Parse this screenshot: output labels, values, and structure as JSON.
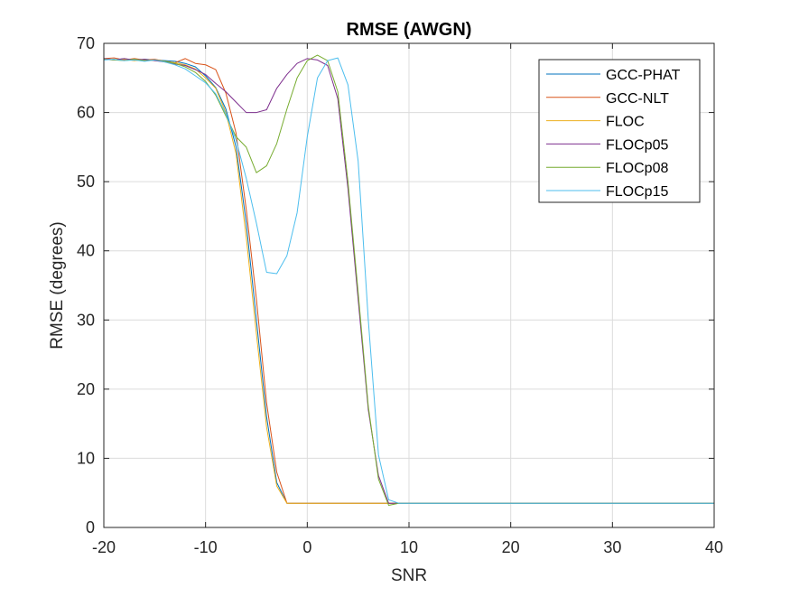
{
  "chart_data": {
    "type": "line",
    "title": "RMSE (AWGN)",
    "xlabel": "SNR",
    "ylabel": "RMSE (degrees)",
    "xlim": [
      -20,
      40
    ],
    "ylim": [
      0,
      70
    ],
    "xticks": [
      -20,
      -10,
      0,
      10,
      20,
      30,
      40
    ],
    "yticks": [
      0,
      10,
      20,
      30,
      40,
      50,
      60,
      70
    ],
    "xtick_labels": [
      "-20",
      "-10",
      "0",
      "10",
      "20",
      "30",
      "40"
    ],
    "ytick_labels": [
      "0",
      "10",
      "20",
      "30",
      "40",
      "50",
      "60",
      "70"
    ],
    "grid": true,
    "legend_position": "top-right",
    "series": [
      {
        "name": "GCC-PHAT",
        "color": "#0072BD",
        "x": [
          -20,
          -19,
          -18,
          -17,
          -16,
          -15,
          -14,
          -13,
          -12,
          -11,
          -10,
          -9,
          -8,
          -7,
          -6,
          -5,
          -4,
          -3,
          -2,
          -1,
          0,
          1,
          2,
          3,
          4,
          5,
          6,
          7,
          8,
          9,
          10,
          11,
          12,
          13,
          14,
          15,
          16,
          17,
          18,
          19,
          20,
          25,
          30,
          35,
          40
        ],
        "y": [
          67.8,
          67.6,
          67.8,
          67.5,
          67.7,
          67.6,
          67.5,
          67.4,
          67.1,
          66.6,
          65.3,
          63.6,
          60.5,
          55.0,
          44.0,
          30.0,
          16.0,
          6.5,
          3.5,
          3.5,
          3.5,
          3.5,
          3.5,
          3.5,
          3.5,
          3.5,
          3.5,
          3.5,
          3.5,
          3.5,
          3.5,
          3.5,
          3.5,
          3.5,
          3.5,
          3.5,
          3.5,
          3.5,
          3.5,
          3.5,
          3.5,
          3.5,
          3.5,
          3.5,
          3.5
        ]
      },
      {
        "name": "GCC-NLT",
        "color": "#D95319",
        "x": [
          -20,
          -19,
          -18,
          -17,
          -16,
          -15,
          -14,
          -13,
          -12,
          -11,
          -10,
          -9,
          -8,
          -7,
          -6,
          -5,
          -4,
          -3,
          -2,
          -1,
          0,
          1,
          2,
          3,
          4,
          5,
          6,
          7,
          8,
          9,
          10,
          11,
          12,
          13,
          14,
          15,
          16,
          17,
          18,
          19,
          20,
          25,
          30,
          35,
          40
        ],
        "y": [
          67.8,
          67.9,
          67.6,
          67.8,
          67.6,
          67.7,
          67.4,
          67.2,
          67.8,
          67.1,
          66.9,
          66.2,
          62.8,
          57.0,
          46.0,
          33.0,
          18.0,
          8.0,
          3.5,
          3.5,
          3.5,
          3.5,
          3.5,
          3.5,
          3.5,
          3.5,
          3.5,
          3.5,
          3.5,
          3.5,
          3.5,
          3.5,
          3.5,
          3.5,
          3.5,
          3.5,
          3.5,
          3.5,
          3.5,
          3.5,
          3.5,
          3.5,
          3.5,
          3.5,
          3.5
        ]
      },
      {
        "name": "FLOC",
        "color": "#EDB120",
        "x": [
          -20,
          -19,
          -18,
          -17,
          -16,
          -15,
          -14,
          -13,
          -12,
          -11,
          -10,
          -9,
          -8,
          -7,
          -6,
          -5,
          -4,
          -3,
          -2,
          -1,
          0,
          1,
          2,
          3,
          4,
          5,
          6,
          7,
          8,
          9,
          10,
          11,
          12,
          13,
          14,
          15,
          16,
          17,
          18,
          19,
          20,
          25,
          30,
          35,
          40
        ],
        "y": [
          67.7,
          67.6,
          67.7,
          67.5,
          67.6,
          67.5,
          67.4,
          67.2,
          66.9,
          66.3,
          65.0,
          63.5,
          60.0,
          54.0,
          42.0,
          28.0,
          14.5,
          6.0,
          3.5,
          3.5,
          3.5,
          3.5,
          3.5,
          3.5,
          3.5,
          3.5,
          3.5,
          3.5,
          3.5,
          3.5,
          3.5,
          3.5,
          3.5,
          3.5,
          3.5,
          3.5,
          3.5,
          3.5,
          3.5,
          3.5,
          3.5,
          3.5,
          3.5,
          3.5,
          3.5
        ]
      },
      {
        "name": "FLOCp05",
        "color": "#7E2F8E",
        "x": [
          -20,
          -19,
          -18,
          -17,
          -16,
          -15,
          -14,
          -13,
          -12,
          -11,
          -10,
          -9,
          -8,
          -7,
          -6,
          -5,
          -4,
          -3,
          -2,
          -1,
          0,
          1,
          2,
          3,
          4,
          5,
          6,
          7,
          8,
          9,
          10,
          11,
          12,
          13,
          14,
          15,
          16,
          17,
          18,
          19,
          20,
          25,
          30,
          35,
          40
        ],
        "y": [
          67.8,
          67.6,
          67.8,
          67.6,
          67.7,
          67.5,
          67.3,
          67.0,
          66.8,
          66.2,
          65.5,
          64.2,
          63.0,
          61.5,
          60.0,
          60.0,
          60.4,
          63.5,
          65.5,
          67.1,
          67.8,
          67.6,
          66.8,
          62.0,
          49.0,
          33.0,
          17.0,
          7.5,
          3.5,
          3.5,
          3.5,
          3.5,
          3.5,
          3.5,
          3.5,
          3.5,
          3.5,
          3.5,
          3.5,
          3.5,
          3.5,
          3.5,
          3.5,
          3.5,
          3.5
        ]
      },
      {
        "name": "FLOCp08",
        "color": "#77AC30",
        "x": [
          -20,
          -19,
          -18,
          -17,
          -16,
          -15,
          -14,
          -13,
          -12,
          -11,
          -10,
          -9,
          -8,
          -7,
          -6,
          -5,
          -4,
          -3,
          -2,
          -1,
          0,
          1,
          2,
          3,
          4,
          5,
          6,
          7,
          8,
          9,
          10,
          11,
          12,
          13,
          14,
          15,
          16,
          17,
          18,
          19,
          20,
          25,
          30,
          35,
          40
        ],
        "y": [
          67.7,
          67.6,
          67.5,
          67.7,
          67.5,
          67.6,
          67.4,
          67.1,
          66.6,
          65.8,
          64.5,
          62.5,
          59.5,
          56.5,
          55.0,
          51.3,
          52.3,
          55.5,
          60.5,
          65.0,
          67.5,
          68.3,
          67.5,
          63.0,
          50.0,
          34.0,
          17.5,
          7.0,
          3.2,
          3.5,
          3.5,
          3.5,
          3.5,
          3.5,
          3.5,
          3.5,
          3.5,
          3.5,
          3.5,
          3.5,
          3.5,
          3.5,
          3.5,
          3.5,
          3.5
        ]
      },
      {
        "name": "FLOCp15",
        "color": "#4DBEEE",
        "x": [
          -20,
          -19,
          -18,
          -17,
          -16,
          -15,
          -14,
          -13,
          -12,
          -11,
          -10,
          -9,
          -8,
          -7,
          -6,
          -5,
          -4,
          -3,
          -2,
          -1,
          0,
          1,
          2,
          3,
          4,
          5,
          6,
          7,
          8,
          9,
          10,
          11,
          12,
          13,
          14,
          15,
          16,
          17,
          18,
          19,
          20,
          25,
          30,
          35,
          40
        ],
        "y": [
          67.6,
          67.7,
          67.5,
          67.6,
          67.4,
          67.6,
          67.3,
          66.9,
          66.3,
          65.3,
          64.3,
          62.7,
          59.8,
          56.0,
          50.5,
          44.0,
          36.9,
          36.7,
          39.3,
          45.5,
          56.5,
          65.0,
          67.5,
          67.9,
          64.0,
          53.0,
          30.0,
          10.5,
          4.0,
          3.5,
          3.5,
          3.5,
          3.5,
          3.5,
          3.5,
          3.5,
          3.5,
          3.5,
          3.5,
          3.5,
          3.5,
          3.5,
          3.5,
          3.5,
          3.5
        ]
      }
    ]
  }
}
